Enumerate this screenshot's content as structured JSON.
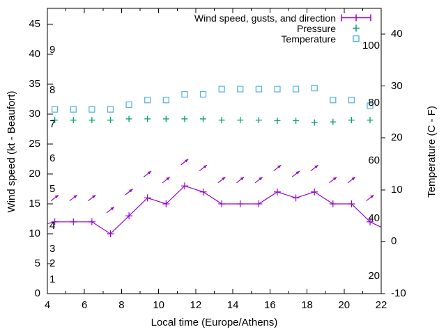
{
  "legend": {
    "entries": [
      {
        "label": "Wind speed, gusts, and direction",
        "symbol": "errorbar",
        "color": "#9400d3"
      },
      {
        "label": "Pressure",
        "symbol": "plus",
        "color": "#009e73"
      },
      {
        "label": "Temperature",
        "symbol": "square",
        "color": "#56b4e9"
      }
    ]
  },
  "axes": {
    "x": {
      "label": "Local time (Europe/Athens)",
      "min": 4,
      "max": 22,
      "major_ticks": [
        4,
        6,
        8,
        10,
        12,
        14,
        16,
        18,
        20,
        22
      ],
      "minor_ticks": [
        5,
        7,
        9,
        11,
        13,
        15,
        17,
        19,
        21
      ]
    },
    "y_left": {
      "label": "Wind speed (kt - Beaufort)",
      "ticks": [
        0,
        5,
        10,
        15,
        20,
        25,
        30,
        35,
        40,
        45
      ]
    },
    "y_right": {
      "label": "Temperature (C - F)",
      "ticks": [
        -10,
        0,
        10,
        20,
        30,
        40
      ]
    },
    "beaufort_inner_labels": [
      {
        "bft": "1",
        "kt": 2.3
      },
      {
        "bft": "2",
        "kt": 5.0
      },
      {
        "bft": "3",
        "kt": 7.4
      },
      {
        "bft": "4",
        "kt": 11.3
      },
      {
        "bft": "5",
        "kt": 17.4
      },
      {
        "bft": "6",
        "kt": 22.6
      },
      {
        "bft": "7",
        "kt": 28.3
      },
      {
        "bft": "8",
        "kt": 34.0
      },
      {
        "bft": "9",
        "kt": 40.7
      }
    ],
    "fahrenheit_inner_labels": [
      {
        "text": "20",
        "f": 20
      },
      {
        "text": "40",
        "f": 40
      },
      {
        "text": "60",
        "f": 60
      },
      {
        "text": "80",
        "f": 80
      },
      {
        "text": "100",
        "f": 100
      }
    ]
  },
  "chart_data": {
    "type": "line",
    "xlim": [
      4,
      22
    ],
    "ylim_kt": [
      0,
      47.7
    ],
    "y2lim_c": [
      -10,
      45
    ],
    "x_hours": [
      4.4,
      5.4,
      6.4,
      7.4,
      8.4,
      9.4,
      10.4,
      11.4,
      12.4,
      13.4,
      14.4,
      15.4,
      16.4,
      17.4,
      18.4,
      19.4,
      20.4,
      21.4
    ],
    "arrow_angle_deg": 38,
    "series": [
      {
        "name": "Wind speed, gusts, and direction",
        "style": "line+points+arrows",
        "color": "#9400d3",
        "wind_kt": [
          12,
          12,
          12,
          10,
          13,
          16,
          15,
          18,
          17,
          15,
          15,
          15,
          17,
          16,
          17,
          15,
          15,
          12
        ],
        "gust_kt": [
          16,
          16,
          16,
          14,
          17,
          20,
          19,
          22,
          21,
          19,
          19,
          19,
          21,
          20,
          21,
          19,
          19,
          16
        ],
        "wind_direction": "from SW (arrows point NE)"
      },
      {
        "name": "Pressure",
        "style": "points-plus",
        "color": "#009e73",
        "values_on_kt_axis": [
          29.0,
          29.0,
          29.0,
          29.0,
          29.2,
          29.2,
          29.2,
          29.2,
          29.2,
          29.0,
          29.0,
          29.0,
          28.9,
          28.9,
          28.6,
          28.7,
          29.0,
          29.0
        ]
      },
      {
        "name": "Temperature",
        "style": "points-square",
        "color": "#56b4e9",
        "values_c": [
          25.5,
          25.5,
          25.5,
          25.5,
          26.4,
          27.3,
          27.3,
          28.4,
          28.4,
          29.4,
          29.4,
          29.4,
          29.4,
          29.4,
          29.6,
          27.3,
          27.3,
          26.2
        ]
      }
    ],
    "clipped_edge_points": {
      "left": {
        "hour": 4.0,
        "kt": 11.7
      },
      "right": {
        "hour": 22.0,
        "kt": 11.1
      }
    }
  },
  "colors": {
    "wind": "#9400d3",
    "pressure": "#009e73",
    "temperature": "#56b4e9",
    "axis": "#000000",
    "background": "#ffffff"
  }
}
